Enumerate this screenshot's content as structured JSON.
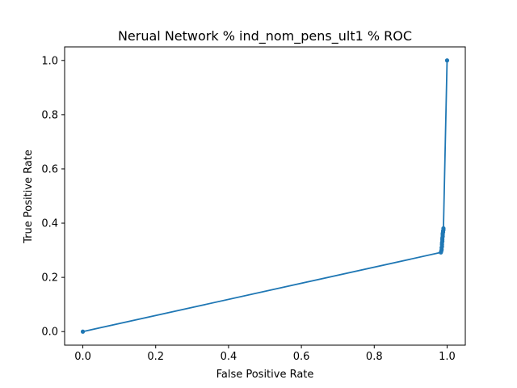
{
  "chart_data": {
    "type": "line",
    "title": "Nerual Network % ind_nom_pens_ult1 % ROC",
    "xlabel": "False Positive Rate",
    "ylabel": "True Positive Rate",
    "xlim": [
      -0.05,
      1.05
    ],
    "ylim": [
      -0.05,
      1.05
    ],
    "grid": false,
    "xticks": [
      0.0,
      0.2,
      0.4,
      0.6,
      0.8,
      1.0
    ],
    "xtick_labels": [
      "0.0",
      "0.2",
      "0.4",
      "0.6",
      "0.8",
      "1.0"
    ],
    "yticks": [
      0.0,
      0.2,
      0.4,
      0.6,
      0.8,
      1.0
    ],
    "ytick_labels": [
      "0.0",
      "0.2",
      "0.4",
      "0.6",
      "0.8",
      "1.0"
    ],
    "series": [
      {
        "color": "#1f77b4",
        "marker": "circle",
        "x": [
          0.0,
          0.983,
          0.984,
          0.985,
          0.985,
          0.986,
          0.986,
          0.986,
          0.987,
          0.987,
          0.987,
          0.988,
          0.988,
          0.988,
          0.989,
          0.989,
          0.99,
          0.99,
          1.0
        ],
        "y": [
          0.0,
          0.292,
          0.297,
          0.302,
          0.309,
          0.314,
          0.321,
          0.327,
          0.333,
          0.339,
          0.345,
          0.351,
          0.357,
          0.362,
          0.367,
          0.371,
          0.375,
          0.381,
          1.0
        ]
      }
    ]
  }
}
